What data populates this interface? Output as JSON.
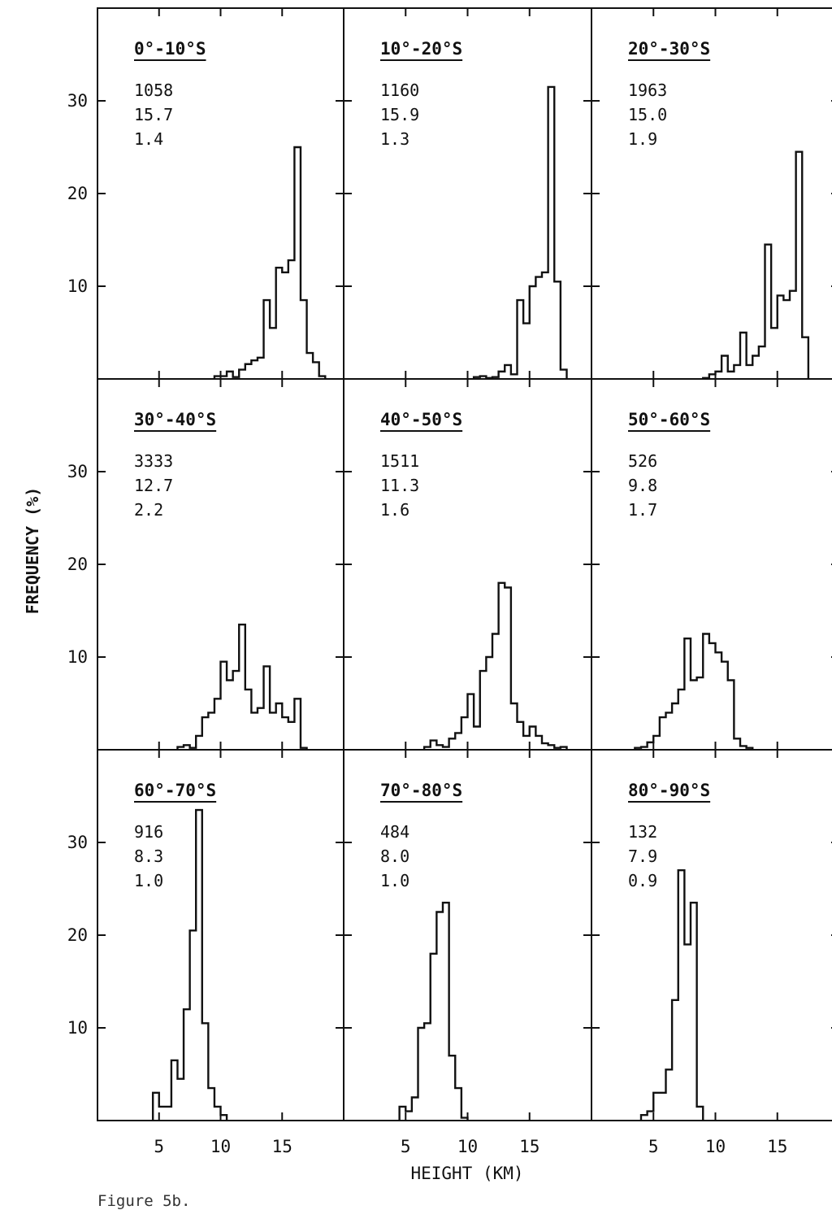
{
  "figure": {
    "caption": "Figure 5b."
  },
  "chart_data": {
    "type": "bar",
    "grid": "3x3 panels, shared axes",
    "xlabel": "HEIGHT (KM)",
    "ylabel": "FREQUENCY (%)",
    "xlim": [
      0,
      20
    ],
    "ylim": [
      0,
      40
    ],
    "x_ticks": [
      5,
      10,
      15
    ],
    "y_ticks": [
      10,
      20,
      30
    ],
    "bin_width_km": 0.5,
    "panels": [
      {
        "title": "0°-10°S",
        "stats": [
          "1058",
          "15.7",
          "1.4"
        ],
        "bins": [
          {
            "from": 9.5,
            "values": [
              0.3,
              0.3,
              0.8,
              0.2,
              1.0,
              1.6,
              2.0,
              2.3,
              8.5,
              5.5,
              12.0,
              11.5,
              12.8,
              25.0,
              8.5,
              2.8,
              1.8,
              0.3
            ]
          }
        ]
      },
      {
        "title": "10°-20°S",
        "stats": [
          "1160",
          "15.9",
          "1.3"
        ],
        "bins": [
          {
            "from": 10.5,
            "values": [
              0.2,
              0.3,
              0.1,
              0.2,
              0.8,
              1.5,
              0.5,
              8.5,
              6.0,
              10.0,
              11.0,
              11.5,
              31.5,
              10.5,
              1.0
            ]
          }
        ]
      },
      {
        "title": "20°-30°S",
        "stats": [
          "1963",
          "15.0",
          "1.9"
        ],
        "bins": [
          {
            "from": 9.0,
            "values": [
              0.1,
              0.5,
              0.8,
              2.5,
              0.8,
              1.5,
              5.0,
              1.5,
              2.5,
              3.5,
              14.5,
              5.5,
              9.0,
              8.5,
              9.5,
              24.5,
              4.5
            ]
          }
        ]
      },
      {
        "title": "30°-40°S",
        "stats": [
          "3333",
          "12.7",
          "2.2"
        ],
        "bins": [
          {
            "from": 6.5,
            "values": [
              0.3,
              0.5,
              0.2,
              1.5,
              3.5,
              4.0,
              5.5,
              9.5,
              7.5,
              8.5,
              13.5,
              6.5,
              4.0,
              4.5,
              9.0,
              4.0,
              5.0,
              3.5,
              3.0,
              5.5,
              0.2
            ]
          }
        ]
      },
      {
        "title": "40°-50°S",
        "stats": [
          "1511",
          "11.3",
          "1.6"
        ],
        "bins": [
          {
            "from": 6.5,
            "values": [
              0.3,
              1.0,
              0.5,
              0.3,
              1.2,
              1.8,
              3.5,
              6.0,
              2.5,
              8.5,
              10.0,
              12.5,
              18.0,
              17.5,
              5.0,
              3.0,
              1.5,
              2.5,
              1.5,
              0.7,
              0.5,
              0.2,
              0.3
            ]
          }
        ]
      },
      {
        "title": "50°-60°S",
        "stats": [
          "526",
          "9.8",
          "1.7"
        ],
        "bins": [
          {
            "from": 3.5,
            "values": [
              0.2,
              0.3,
              0.8,
              1.5,
              3.5,
              4.0,
              5.0,
              6.5,
              12.0,
              7.5,
              7.8,
              12.5,
              11.5,
              10.5,
              9.5,
              7.5,
              1.2,
              0.4,
              0.2
            ]
          }
        ]
      },
      {
        "title": "60°-70°S",
        "stats": [
          "916",
          "8.3",
          "1.0"
        ],
        "bins": [
          {
            "from": 4.5,
            "values": [
              3.0,
              1.5,
              1.5,
              6.5,
              4.5,
              12.0,
              20.5,
              33.5,
              10.5,
              3.5,
              1.5,
              0.6
            ]
          }
        ]
      },
      {
        "title": "70°-80°S",
        "stats": [
          "484",
          "8.0",
          "1.0"
        ],
        "bins": [
          {
            "from": 4.5,
            "values": [
              1.5,
              1.0,
              2.5,
              10.0,
              10.5,
              18.0,
              22.5,
              23.5,
              7.0,
              3.5,
              0.3
            ]
          }
        ]
      },
      {
        "title": "80°-90°S",
        "stats": [
          "132",
          "7.9",
          "0.9"
        ],
        "bins": [
          {
            "from": 4.0,
            "values": [
              0.6,
              1.0,
              3.0,
              3.0,
              5.5,
              13.0,
              27.0,
              19.0,
              23.5,
              1.5
            ]
          }
        ]
      }
    ]
  }
}
